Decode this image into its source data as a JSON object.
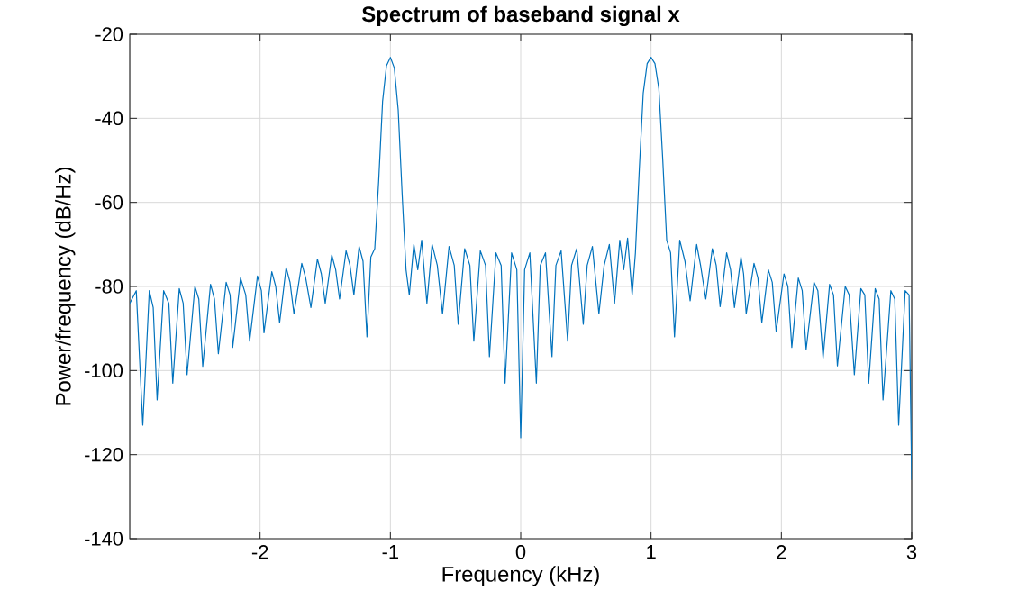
{
  "chart_data": {
    "type": "line",
    "title": "Spectrum of baseband signal x",
    "xlabel": "Frequency (kHz)",
    "ylabel": "Power/frequency (dB/Hz)",
    "xlim": [
      -3,
      3
    ],
    "ylim": [
      -140,
      -20
    ],
    "xticks": [
      -2,
      -1,
      0,
      1,
      2,
      3
    ],
    "yticks": [
      -140,
      -120,
      -100,
      -80,
      -60,
      -40,
      -20
    ],
    "grid": true,
    "marker": "none",
    "line_style": "solid",
    "series": [
      {
        "color": "#0072bd",
        "x": [
          -3.0,
          -2.95,
          -2.9,
          -2.85,
          -2.82,
          -2.79,
          -2.74,
          -2.7,
          -2.67,
          -2.62,
          -2.59,
          -2.56,
          -2.5,
          -2.47,
          -2.44,
          -2.38,
          -2.35,
          -2.32,
          -2.26,
          -2.23,
          -2.21,
          -2.15,
          -2.11,
          -2.08,
          -2.02,
          -1.99,
          -1.97,
          -1.91,
          -1.88,
          -1.85,
          -1.8,
          -1.77,
          -1.74,
          -1.68,
          -1.65,
          -1.61,
          -1.56,
          -1.53,
          -1.5,
          -1.45,
          -1.42,
          -1.39,
          -1.34,
          -1.31,
          -1.28,
          -1.24,
          -1.21,
          -1.18,
          -1.15,
          -1.12,
          -1.09,
          -1.06,
          -1.03,
          -1.0,
          -0.97,
          -0.94,
          -0.91,
          -0.88,
          -0.855,
          -0.82,
          -0.79,
          -0.76,
          -0.72,
          -0.68,
          -0.64,
          -0.6,
          -0.55,
          -0.51,
          -0.48,
          -0.43,
          -0.39,
          -0.36,
          -0.31,
          -0.27,
          -0.24,
          -0.19,
          -0.15,
          -0.12,
          -0.07,
          -0.03,
          0.0,
          0.03,
          0.07,
          0.12,
          0.15,
          0.19,
          0.24,
          0.27,
          0.31,
          0.36,
          0.39,
          0.43,
          0.48,
          0.51,
          0.55,
          0.6,
          0.64,
          0.68,
          0.72,
          0.76,
          0.79,
          0.82,
          0.855,
          0.88,
          0.91,
          0.94,
          0.97,
          1.0,
          1.03,
          1.06,
          1.09,
          1.12,
          1.15,
          1.18,
          1.22,
          1.26,
          1.3,
          1.35,
          1.38,
          1.42,
          1.47,
          1.5,
          1.53,
          1.58,
          1.61,
          1.64,
          1.69,
          1.71,
          1.73,
          1.79,
          1.82,
          1.85,
          1.9,
          1.93,
          1.96,
          2.02,
          2.05,
          2.08,
          2.13,
          2.16,
          2.19,
          2.25,
          2.28,
          2.32,
          2.37,
          2.4,
          2.43,
          2.49,
          2.52,
          2.56,
          2.61,
          2.64,
          2.67,
          2.72,
          2.75,
          2.78,
          2.84,
          2.87,
          2.9,
          2.95,
          2.98,
          3.0
        ],
        "values": [
          -84,
          -81,
          -113,
          -81,
          -85,
          -107,
          -81,
          -84,
          -103,
          -80.5,
          -84,
          -101,
          -80,
          -83,
          -99,
          -79.5,
          -83,
          -96,
          -79,
          -82,
          -94.5,
          -78,
          -82,
          -93,
          -77.5,
          -81,
          -91,
          -76.5,
          -80,
          -88.6,
          -75.5,
          -79,
          -86.5,
          -74.5,
          -78,
          -85,
          -73.5,
          -77,
          -84,
          -72.5,
          -76,
          -83,
          -71.5,
          -75,
          -82,
          -70.5,
          -74,
          -92,
          -73,
          -71,
          -55,
          -36,
          -27.5,
          -25.5,
          -28,
          -38,
          -58,
          -76,
          -82,
          -70,
          -76,
          -69,
          -84,
          -70,
          -75,
          -86.5,
          -70.5,
          -75,
          -89,
          -71,
          -75,
          -93,
          -71.5,
          -75,
          -96.7,
          -72,
          -75,
          -103,
          -72,
          -76,
          -116,
          -76,
          -72,
          -103,
          -75,
          -72,
          -96.7,
          -75,
          -71.5,
          -93,
          -75,
          -71,
          -89,
          -75,
          -70.5,
          -86.5,
          -75,
          -70,
          -84,
          -69,
          -76,
          -68.5,
          -82,
          -72,
          -52,
          -34,
          -27,
          -25.5,
          -27,
          -33,
          -50,
          -69,
          -72,
          -92,
          -69,
          -74,
          -83.4,
          -70,
          -75,
          -83,
          -71,
          -75,
          -84.8,
          -72,
          -76,
          -85,
          -73,
          -77,
          -86.5,
          -74.5,
          -78,
          -88.6,
          -76,
          -79,
          -90.7,
          -77,
          -80,
          -94.5,
          -78,
          -81,
          -95,
          -79,
          -81,
          -97,
          -79.5,
          -82,
          -98.9,
          -80,
          -82,
          -101,
          -80.5,
          -82,
          -103,
          -80.5,
          -83,
          -107,
          -81,
          -83,
          -113,
          -81,
          -82,
          -126
        ]
      }
    ]
  }
}
